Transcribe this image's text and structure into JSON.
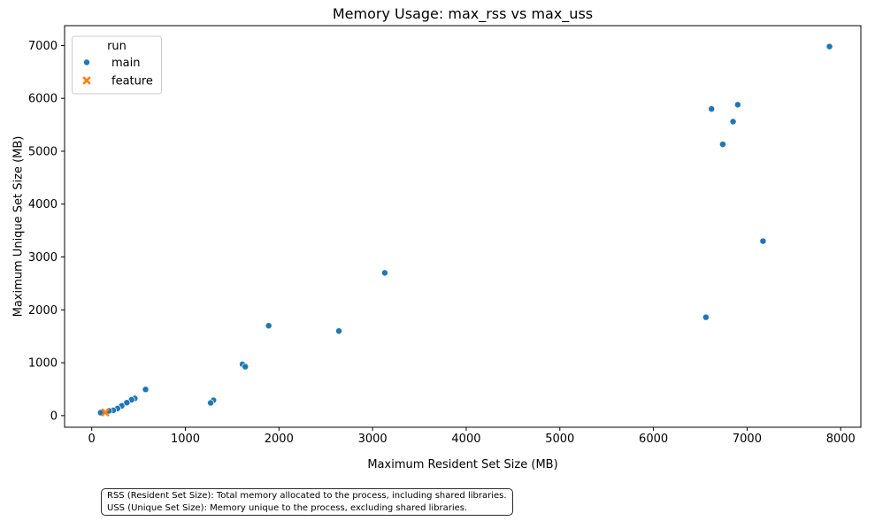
{
  "chart_data": {
    "type": "scatter",
    "title": "Memory Usage: max_rss vs max_uss",
    "xlabel": "Maximum Resident Set Size (MB)",
    "ylabel": "Maximum Unique Set Size (MB)",
    "xlim": [
      -290,
      8215
    ],
    "ylim": [
      -220,
      7375
    ],
    "x_ticks": [
      0,
      1000,
      2000,
      3000,
      4000,
      5000,
      6000,
      7000,
      8000
    ],
    "y_ticks": [
      0,
      1000,
      2000,
      3000,
      4000,
      5000,
      6000,
      7000
    ],
    "grid": false,
    "legend": {
      "title": "run",
      "position": "upper left"
    },
    "series": [
      {
        "name": "main",
        "marker": "circle",
        "color": "#1f77b4",
        "points": [
          [
            7880,
            6980
          ],
          [
            6900,
            5880
          ],
          [
            6620,
            5800
          ],
          [
            6850,
            5560
          ],
          [
            6740,
            5130
          ],
          [
            7170,
            3300
          ],
          [
            3130,
            2700
          ],
          [
            6560,
            1860
          ],
          [
            1890,
            1700
          ],
          [
            2640,
            1600
          ],
          [
            1610,
            970
          ],
          [
            1640,
            925
          ],
          [
            575,
            495
          ],
          [
            460,
            325
          ],
          [
            1300,
            290
          ],
          [
            425,
            300
          ],
          [
            1270,
            240
          ],
          [
            375,
            245
          ],
          [
            320,
            185
          ],
          [
            275,
            135
          ],
          [
            230,
            100
          ],
          [
            185,
            90
          ],
          [
            95,
            55
          ]
        ]
      },
      {
        "name": "feature",
        "marker": "x",
        "color": "#ff7f0e",
        "points": [
          [
            145,
            60
          ]
        ]
      }
    ]
  },
  "footnote": {
    "lines": [
      "RSS (Resident Set Size): Total memory allocated to the process, including shared libraries.",
      "USS (Unique Set Size): Memory unique to the process, excluding shared libraries."
    ]
  }
}
